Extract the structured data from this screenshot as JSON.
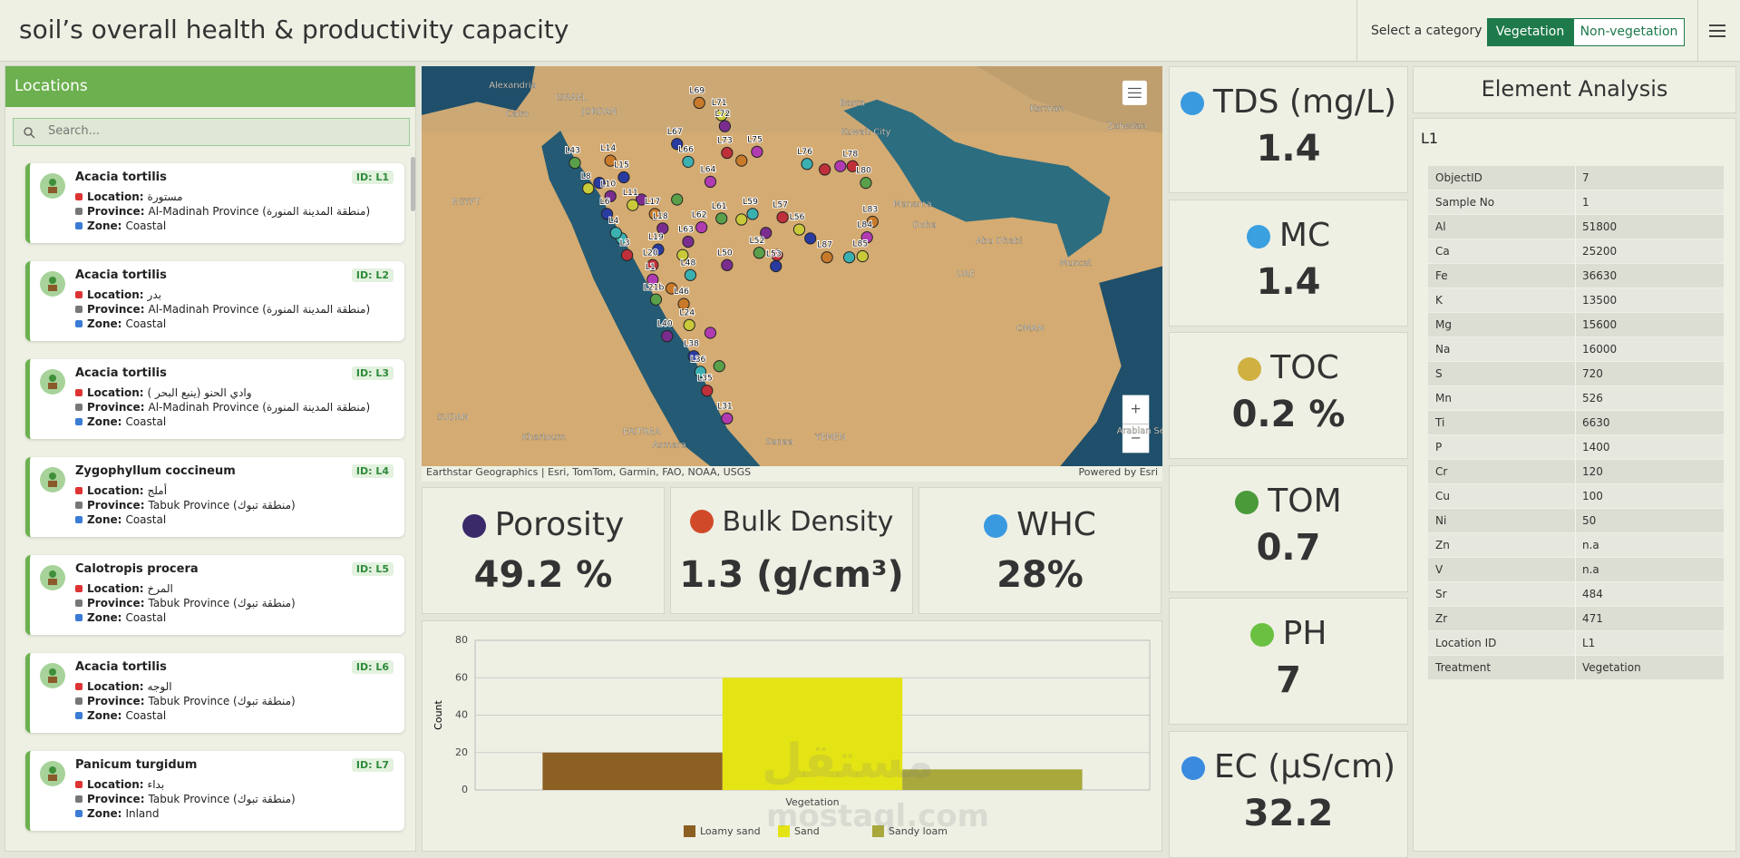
{
  "header": {
    "title": "soil’s overall health & productivity capacity",
    "select_label": "Select a category",
    "buttons": [
      "Vegetation",
      "Non-vegetation"
    ]
  },
  "locations": {
    "title": "Locations",
    "search_placeholder": "Search...",
    "field_labels": {
      "location": "Location:",
      "province": "Province:",
      "zone": "Zone:"
    },
    "items": [
      {
        "name": "Acacia tortilis",
        "id": "ID: L1",
        "location": "مستورة",
        "province": "Al-Madinah Province (منطقة المدينة المنورة)",
        "zone": "Coastal"
      },
      {
        "name": "Acacia tortilis",
        "id": "ID: L2",
        "location": "بدر",
        "province": "Al-Madinah Province (منطقة المدينة المنورة)",
        "zone": "Coastal"
      },
      {
        "name": "Acacia tortilis",
        "id": "ID: L3",
        "location": "وادي الحنو (ينبع البحر )",
        "province": "Al-Madinah Province (منطقة المدينة المنورة)",
        "zone": "Coastal"
      },
      {
        "name": "Zygophyllum coccineum",
        "id": "ID: L4",
        "location": "أملج",
        "province": "Tabuk Province (منطقة تبوك)",
        "zone": "Coastal"
      },
      {
        "name": "Calotropis procera",
        "id": "ID: L5",
        "location": "المرخ",
        "province": "Tabuk Province (منطقة تبوك)",
        "zone": "Coastal"
      },
      {
        "name": "Acacia tortilis",
        "id": "ID: L6",
        "location": "الوجه",
        "province": "Tabuk Province (منطقة تبوك)",
        "zone": "Coastal"
      },
      {
        "name": "Panicum turgidum",
        "id": "ID: L7",
        "location": "بداء",
        "province": "Tabuk Province (منطقة تبوك)",
        "zone": "Inland"
      }
    ]
  },
  "map": {
    "places": [
      "Alexandria",
      "Cairo",
      "ISRAEL",
      "JORDAN",
      "EGYPT",
      "Basra",
      "Kuwait City",
      "Kerman",
      "Zahedan",
      "Manama",
      "Doha",
      "Abu Dhabi",
      "UAE",
      "Muscat",
      "OMAN",
      "SUDAN",
      "Khartoum",
      "ERITREA",
      "Asmara",
      "Sanaa",
      "YEMEN",
      "Arabian Sea"
    ],
    "markers": [
      "L69",
      "L71",
      "L72",
      "L67",
      "L66",
      "L73",
      "L75",
      "L43",
      "L14",
      "L8",
      "L10",
      "L15",
      "L76",
      "L78",
      "L64",
      "L80",
      "L17",
      "L11",
      "L18",
      "L6",
      "L59",
      "L57",
      "L62",
      "L61",
      "L83",
      "L56",
      "L63",
      "L19",
      "L4",
      "L3",
      "L84",
      "L52",
      "L87",
      "L85",
      "L50",
      "L53",
      "L48",
      "L20",
      "L1",
      "L21b",
      "L46",
      "L24",
      "L40",
      "L38",
      "L36",
      "L35",
      "L31"
    ],
    "attribution": "Earthstar Geographics | Esri, TomTom, Garmin, FAO, NOAA, USGS",
    "powered": "Powered by Esri",
    "zoom_in": "+",
    "zoom_out": "−"
  },
  "metrics": [
    {
      "label": "Porosity",
      "value": "49.2 %"
    },
    {
      "label": "Bulk Density",
      "value": "1.3 (g/cm³)"
    },
    {
      "label": "WHC",
      "value": "28%"
    },
    {
      "label": "TDS (mg/L)",
      "value": "1.4"
    },
    {
      "label": "MC",
      "value": "1.4"
    },
    {
      "label": "TOC",
      "value": "0.2 %"
    },
    {
      "label": "TOM",
      "value": "0.7"
    },
    {
      "label": "PH",
      "value": "7"
    },
    {
      "label": "EC (µS/cm)",
      "value": "32.2"
    }
  ],
  "chart_data": {
    "type": "bar",
    "y_label": "Count",
    "categories": [
      "Vegetation"
    ],
    "series": [
      {
        "name": "Loamy sand",
        "color": "#8c5f22",
        "values": [
          20
        ]
      },
      {
        "name": "Sand",
        "color": "#e4e414",
        "values": [
          60
        ]
      },
      {
        "name": "Sandy loam",
        "color": "#a8a83c",
        "values": [
          11
        ]
      }
    ],
    "ylim": [
      0,
      80
    ],
    "yticks": [
      0,
      20,
      40,
      60,
      80
    ],
    "grid": true
  },
  "element_analysis": {
    "title": "Element Analysis",
    "location": "L1",
    "rows": [
      [
        "ObjectID",
        "7"
      ],
      [
        "Sample No",
        "1"
      ],
      [
        "Al",
        "51800"
      ],
      [
        "Ca",
        "25200"
      ],
      [
        "Fe",
        "36630"
      ],
      [
        "K",
        "13500"
      ],
      [
        "Mg",
        "15600"
      ],
      [
        "Na",
        "16000"
      ],
      [
        "S",
        "720"
      ],
      [
        "Mn",
        "526"
      ],
      [
        "Ti",
        "6630"
      ],
      [
        "P",
        "1400"
      ],
      [
        "Cr",
        "120"
      ],
      [
        "Cu",
        "100"
      ],
      [
        "Ni",
        "50"
      ],
      [
        "Zn",
        "n.a"
      ],
      [
        "V",
        "n.a"
      ],
      [
        "Sr",
        "484"
      ],
      [
        "Zr",
        "471"
      ],
      [
        "Location ID",
        "L1"
      ],
      [
        "Treatment",
        "Vegetation"
      ]
    ]
  },
  "watermark": [
    "مستقل",
    "mostaql.com"
  ]
}
